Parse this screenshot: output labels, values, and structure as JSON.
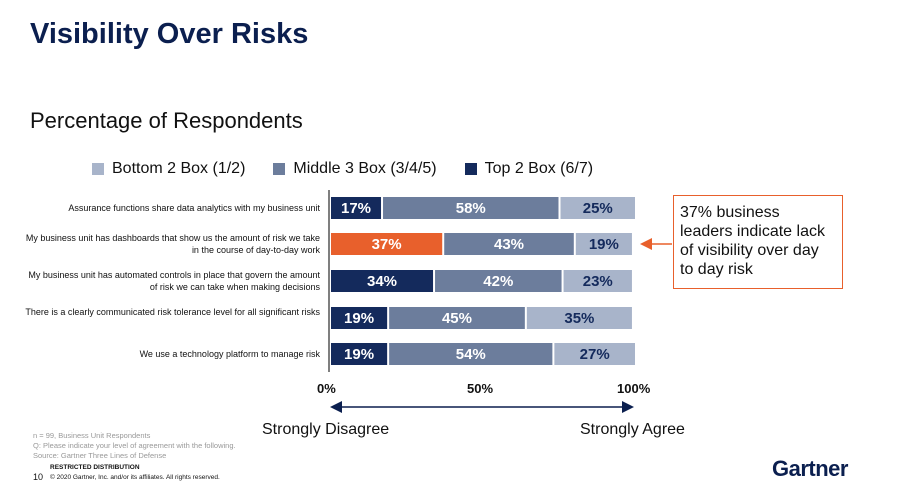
{
  "slide": {
    "title": "Visibility Over Risks",
    "subtitle": "Percentage of Respondents",
    "callout": "37% business leaders indicate lack of visibility over day to day risk",
    "scale_left": "Strongly Disagree",
    "scale_right": "Strongly Agree",
    "notes": [
      "n = 99, Business Unit Respondents",
      "Q: Please indicate your level of agreement with the following.",
      "Source: Gartner Three Lines of Defense"
    ],
    "restricted": "RESTRICTED DISTRIBUTION",
    "page_number": "10",
    "copyright": "© 2020 Gartner, Inc. and/or its affiliates. All rights reserved.",
    "logo": "Gartner"
  },
  "chart_data": {
    "type": "bar",
    "orientation": "horizontal-stacked",
    "title": "Percentage of Respondents",
    "categories": [
      "Assurance functions share data analytics with my business unit",
      "My business unit has dashboards that show us the amount of risk we take in the course of day-to-day work",
      "My business unit has automated controls in place that govern the amount of risk we can take when making decisions",
      "There is a clearly communicated risk tolerance level for all significant risks",
      "We use a technology platform to manage risk"
    ],
    "legend": [
      {
        "name": "Bottom 2 Box (1/2)",
        "color": "#a8b4ca"
      },
      {
        "name": "Middle 3 Box (3/4/5)",
        "color": "#6c7d9c"
      },
      {
        "name": "Top 2 Box (6/7)",
        "color": "#142a5c"
      }
    ],
    "segment_colors": [
      "#142a5c",
      "#6c7d9c",
      "#a8b4ca"
    ],
    "highlight_color": "#e8602c",
    "highlight": {
      "row": 1,
      "segment": 0
    },
    "values": [
      [
        17,
        58,
        25
      ],
      [
        37,
        43,
        19
      ],
      [
        34,
        42,
        23
      ],
      [
        19,
        45,
        35
      ],
      [
        19,
        54,
        27
      ]
    ],
    "xlim": [
      0,
      100
    ],
    "xticks": [
      "0%",
      "50%",
      "100%"
    ],
    "legend_position": "top"
  }
}
